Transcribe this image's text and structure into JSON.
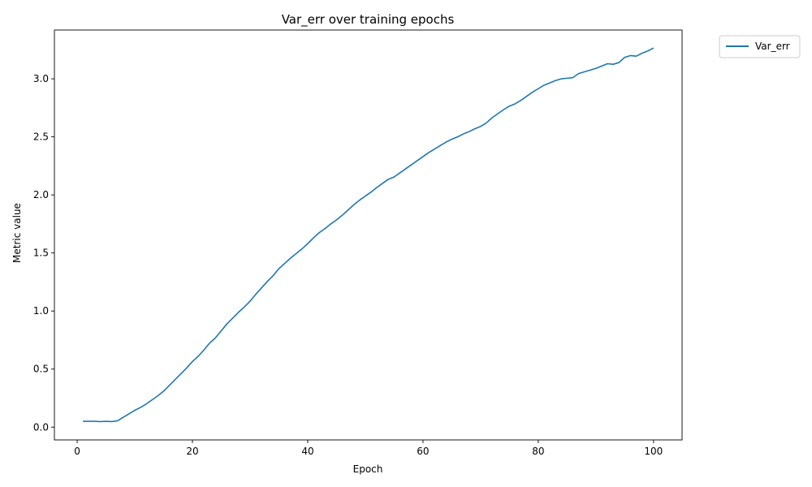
{
  "chart_data": {
    "type": "line",
    "title": "Var_err over training epochs",
    "xlabel": "Epoch",
    "ylabel": "Metric value",
    "xlim": [
      -3.95,
      104.95
    ],
    "ylim": [
      -0.11,
      3.42
    ],
    "xticks": [
      0,
      20,
      40,
      60,
      80,
      100
    ],
    "xtick_labels": [
      "0",
      "20",
      "40",
      "60",
      "80",
      "100"
    ],
    "yticks": [
      0.0,
      0.5,
      1.0,
      1.5,
      2.0,
      2.5,
      3.0
    ],
    "ytick_labels": [
      "0.0",
      "0.5",
      "1.0",
      "1.5",
      "2.0",
      "2.5",
      "3.0"
    ],
    "grid": false,
    "legend": {
      "position": "outside-top-right",
      "entries": [
        "Var_err"
      ]
    },
    "series": [
      {
        "name": "Var_err",
        "color": "#1f77b4",
        "x": [
          1,
          2,
          3,
          4,
          5,
          6,
          7,
          8,
          9,
          10,
          11,
          12,
          13,
          14,
          15,
          16,
          17,
          18,
          19,
          20,
          21,
          22,
          23,
          24,
          25,
          26,
          27,
          28,
          29,
          30,
          31,
          32,
          33,
          34,
          35,
          36,
          37,
          38,
          39,
          40,
          41,
          42,
          43,
          44,
          45,
          46,
          47,
          48,
          49,
          50,
          51,
          52,
          53,
          54,
          55,
          56,
          57,
          58,
          59,
          60,
          61,
          62,
          63,
          64,
          65,
          66,
          67,
          68,
          69,
          70,
          71,
          72,
          73,
          74,
          75,
          76,
          77,
          78,
          79,
          80,
          81,
          82,
          83,
          84,
          85,
          86,
          87,
          88,
          89,
          90,
          91,
          92,
          93,
          94,
          95,
          96,
          97,
          98,
          99,
          100
        ],
        "values": [
          0.05,
          0.05,
          0.05,
          0.048,
          0.05,
          0.048,
          0.055,
          0.085,
          0.115,
          0.145,
          0.17,
          0.2,
          0.235,
          0.27,
          0.31,
          0.36,
          0.41,
          0.46,
          0.51,
          0.565,
          0.61,
          0.665,
          0.725,
          0.77,
          0.83,
          0.89,
          0.94,
          0.99,
          1.035,
          1.085,
          1.145,
          1.2,
          1.255,
          1.305,
          1.365,
          1.41,
          1.455,
          1.495,
          1.535,
          1.58,
          1.63,
          1.675,
          1.71,
          1.75,
          1.785,
          1.825,
          1.87,
          1.915,
          1.955,
          1.99,
          2.025,
          2.065,
          2.1,
          2.135,
          2.155,
          2.19,
          2.225,
          2.26,
          2.295,
          2.33,
          2.365,
          2.395,
          2.425,
          2.455,
          2.48,
          2.5,
          2.525,
          2.545,
          2.57,
          2.59,
          2.62,
          2.665,
          2.7,
          2.735,
          2.765,
          2.785,
          2.815,
          2.85,
          2.885,
          2.915,
          2.945,
          2.965,
          2.985,
          3.0,
          3.005,
          3.01,
          3.045,
          3.06,
          3.075,
          3.09,
          3.11,
          3.13,
          3.125,
          3.14,
          3.185,
          3.2,
          3.195,
          3.22,
          3.24,
          3.265
        ]
      }
    ]
  }
}
